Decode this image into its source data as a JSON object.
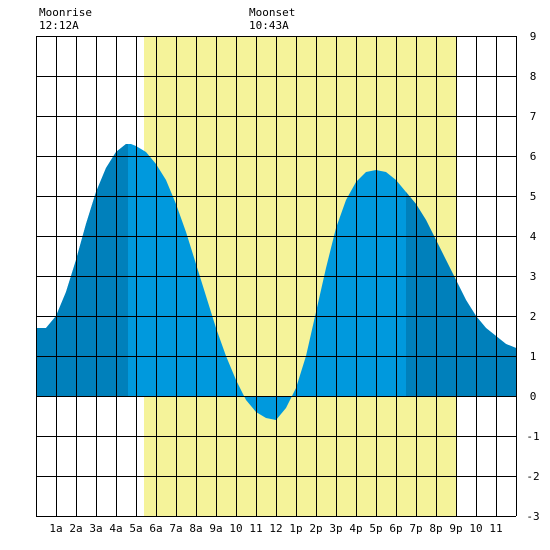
{
  "moon": {
    "rise_label": "Moonrise",
    "rise_time": "12:12A",
    "set_label": "Moonset",
    "set_time": "10:43A"
  },
  "colors": {
    "daylight": "#f5f39a",
    "tide": "#0099dd",
    "tide_night": "#0080bb",
    "grid": "#000000",
    "background": "#ffffff"
  },
  "chart_data": {
    "type": "area",
    "title": "",
    "xlabel": "",
    "ylabel": "",
    "xlim": [
      0,
      24
    ],
    "ylim": [
      -3,
      9
    ],
    "grid": true,
    "daylight_hours": [
      5.4,
      21.0
    ],
    "night_shade_hours": [
      [
        0,
        4.6
      ],
      [
        18.5,
        24
      ]
    ],
    "x_ticks": [
      {
        "hour": 1,
        "label": "1a"
      },
      {
        "hour": 2,
        "label": "2a"
      },
      {
        "hour": 3,
        "label": "3a"
      },
      {
        "hour": 4,
        "label": "4a"
      },
      {
        "hour": 5,
        "label": "5a"
      },
      {
        "hour": 6,
        "label": "6a"
      },
      {
        "hour": 7,
        "label": "7a"
      },
      {
        "hour": 8,
        "label": "8a"
      },
      {
        "hour": 9,
        "label": "9a"
      },
      {
        "hour": 10,
        "label": "10"
      },
      {
        "hour": 11,
        "label": "11"
      },
      {
        "hour": 12,
        "label": "12"
      },
      {
        "hour": 13,
        "label": "1p"
      },
      {
        "hour": 14,
        "label": "2p"
      },
      {
        "hour": 15,
        "label": "3p"
      },
      {
        "hour": 16,
        "label": "4p"
      },
      {
        "hour": 17,
        "label": "5p"
      },
      {
        "hour": 18,
        "label": "6p"
      },
      {
        "hour": 19,
        "label": "7p"
      },
      {
        "hour": 20,
        "label": "8p"
      },
      {
        "hour": 21,
        "label": "9p"
      },
      {
        "hour": 22,
        "label": "10"
      },
      {
        "hour": 23,
        "label": "11"
      }
    ],
    "y_ticks": [
      {
        "value": 9,
        "label": "9"
      },
      {
        "value": 8,
        "label": "8"
      },
      {
        "value": 7,
        "label": "7"
      },
      {
        "value": 6,
        "label": "6"
      },
      {
        "value": 5,
        "label": "5"
      },
      {
        "value": 4,
        "label": "4"
      },
      {
        "value": 3,
        "label": "3"
      },
      {
        "value": 2,
        "label": "2"
      },
      {
        "value": 1,
        "label": "1"
      },
      {
        "value": 0,
        "label": "0"
      },
      {
        "value": -1,
        "label": "-1"
      },
      {
        "value": -2,
        "label": "-2"
      },
      {
        "value": -3,
        "label": "-3"
      }
    ],
    "series": [
      {
        "x": [
          0,
          0.5,
          1.0,
          1.5,
          2.0,
          2.5,
          3.0,
          3.5,
          4.0,
          4.5,
          4.75,
          5.0,
          5.5,
          6.0,
          6.5,
          7.0,
          7.5,
          8.0,
          8.5,
          9.0,
          9.5,
          10.0,
          10.5,
          11.0,
          11.5,
          12.0,
          12.5,
          13.0,
          13.5,
          14.0,
          14.5,
          15.0,
          15.5,
          16.0,
          16.5,
          17.0,
          17.5,
          18.0,
          18.5,
          19.0,
          19.5,
          20.0,
          20.5,
          21.0,
          21.5,
          22.0,
          22.5,
          23.0,
          23.5,
          24.0
        ],
        "y": [
          1.7,
          1.7,
          2.0,
          2.6,
          3.4,
          4.3,
          5.1,
          5.7,
          6.1,
          6.3,
          6.3,
          6.25,
          6.1,
          5.8,
          5.4,
          4.8,
          4.1,
          3.3,
          2.5,
          1.7,
          1.0,
          0.4,
          -0.1,
          -0.4,
          -0.55,
          -0.6,
          -0.3,
          0.2,
          1.0,
          2.1,
          3.2,
          4.2,
          4.9,
          5.35,
          5.6,
          5.65,
          5.6,
          5.4,
          5.1,
          4.8,
          4.4,
          3.9,
          3.4,
          2.9,
          2.4,
          2.0,
          1.7,
          1.5,
          1.3,
          1.2
        ]
      }
    ]
  }
}
